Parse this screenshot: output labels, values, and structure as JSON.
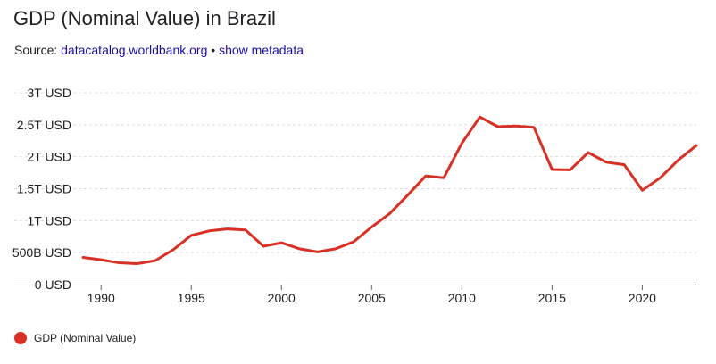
{
  "header": {
    "title": "GDP (Nominal Value) in Brazil",
    "source_prefix": "Source: ",
    "source_link": "datacatalog.worldbank.org",
    "separator": " • ",
    "metadata_link": "show metadata"
  },
  "colors": {
    "series": "#d93025",
    "link": "#1a0dab",
    "grid": "#dadce0",
    "axis": "#5f6368"
  },
  "chart_data": {
    "type": "line",
    "title": "",
    "xlabel": "",
    "ylabel": "",
    "xlim": [
      1989,
      2023
    ],
    "ylim": [
      0,
      3000000000000
    ],
    "grid": "horizontal dashed",
    "legend": "bottom-left",
    "y_ticks": [
      {
        "value": 0,
        "label": "0 USD"
      },
      {
        "value": 500000000000,
        "label": "500B USD"
      },
      {
        "value": 1000000000000,
        "label": "1T USD"
      },
      {
        "value": 1500000000000,
        "label": "1.5T USD"
      },
      {
        "value": 2000000000000,
        "label": "2T USD"
      },
      {
        "value": 2500000000000,
        "label": "2.5T USD"
      },
      {
        "value": 3000000000000,
        "label": "3T USD"
      }
    ],
    "x_ticks": [
      {
        "value": 1990,
        "label": "1990"
      },
      {
        "value": 1995,
        "label": "1995"
      },
      {
        "value": 2000,
        "label": "2000"
      },
      {
        "value": 2005,
        "label": "2005"
      },
      {
        "value": 2010,
        "label": "2010"
      },
      {
        "value": 2015,
        "label": "2015"
      },
      {
        "value": 2020,
        "label": "2020"
      }
    ],
    "series": [
      {
        "name": "GDP (Nominal Value)",
        "x": [
          1989,
          1990,
          1991,
          1992,
          1993,
          1994,
          1995,
          1996,
          1997,
          1998,
          1999,
          2000,
          2001,
          2002,
          2003,
          2004,
          2005,
          2006,
          2007,
          2008,
          2009,
          2010,
          2011,
          2012,
          2013,
          2014,
          2015,
          2016,
          2017,
          2018,
          2019,
          2020,
          2021,
          2022,
          2023
        ],
        "values": [
          425000000000,
          390000000000,
          342000000000,
          328000000000,
          375000000000,
          545000000000,
          770000000000,
          840000000000,
          870000000000,
          855000000000,
          600000000000,
          655000000000,
          560000000000,
          510000000000,
          560000000000,
          670000000000,
          900000000000,
          1110000000000,
          1400000000000,
          1700000000000,
          1670000000000,
          2210000000000,
          2620000000000,
          2470000000000,
          2480000000000,
          2460000000000,
          1800000000000,
          1795000000000,
          2065000000000,
          1915000000000,
          1875000000000,
          1475000000000,
          1670000000000,
          1950000000000,
          2175000000000
        ]
      }
    ]
  }
}
